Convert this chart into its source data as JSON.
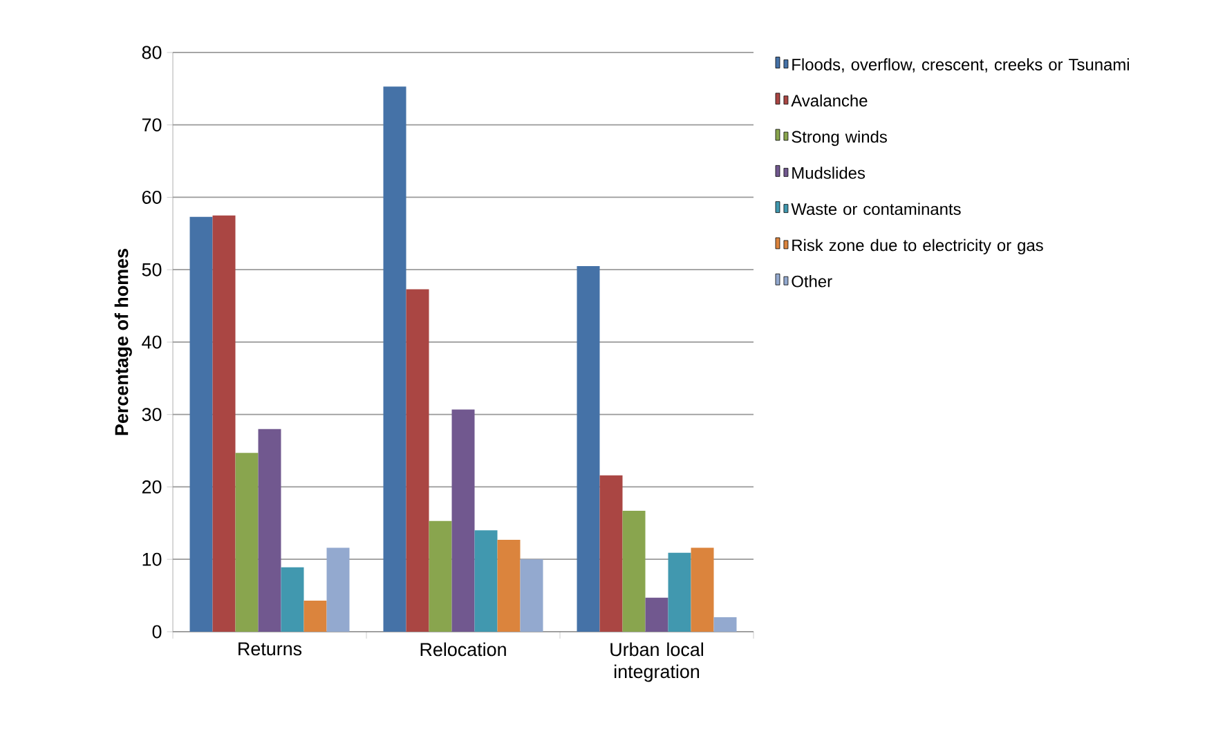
{
  "chart_data": {
    "type": "bar",
    "ylabel": "Percentage of homes",
    "categories": [
      "Returns",
      "Relocation",
      "Urban local integration"
    ],
    "series": [
      {
        "name": "Floods, overflow, crescent, creeks or Tsunami",
        "color": "#4572a7",
        "values": [
          57.3,
          75.3,
          50.5
        ]
      },
      {
        "name": "Avalanche",
        "color": "#aa4643",
        "values": [
          57.5,
          47.3,
          21.6
        ]
      },
      {
        "name": "Strong winds",
        "color": "#89a54e",
        "values": [
          24.7,
          15.3,
          16.7
        ]
      },
      {
        "name": "Mudslides",
        "color": "#71588f",
        "values": [
          28.0,
          30.7,
          4.7
        ]
      },
      {
        "name": "Waste or contaminants",
        "color": "#4198af",
        "values": [
          8.9,
          14.0,
          10.9
        ]
      },
      {
        "name": "Risk zone due to electricity or gas",
        "color": "#db843d",
        "values": [
          4.3,
          12.7,
          11.6
        ]
      },
      {
        "name": "Other",
        "color": "#93a9cf",
        "values": [
          11.6,
          10.0,
          2.0
        ]
      }
    ],
    "ylim": [
      0,
      80
    ],
    "yticks": [
      0,
      10,
      20,
      30,
      40,
      50,
      60,
      70,
      80
    ],
    "grid": "y",
    "legend": "right"
  }
}
